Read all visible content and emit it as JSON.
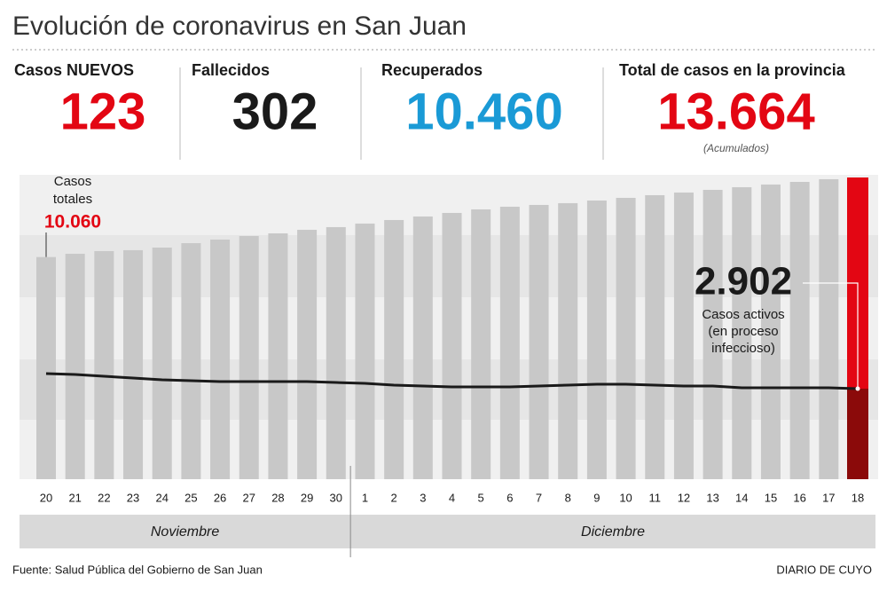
{
  "title": "Evolución de coronavirus en San Juan",
  "stats": [
    {
      "label": "Casos NUEVOS",
      "value": "123",
      "color": "#e30613"
    },
    {
      "label": "Fallecidos",
      "value": "302",
      "color": "#1a1a1a"
    },
    {
      "label": "Recuperados",
      "value": "10.460",
      "color": "#1a9ad6"
    },
    {
      "label": "Total de casos en la provincia",
      "value": "13.664",
      "color": "#e30613",
      "note": "(Acumulados)"
    }
  ],
  "chart_data": {
    "type": "bar",
    "categories": [
      "20",
      "21",
      "22",
      "23",
      "24",
      "25",
      "26",
      "27",
      "28",
      "29",
      "30",
      "1",
      "2",
      "3",
      "4",
      "5",
      "6",
      "7",
      "8",
      "9",
      "10",
      "11",
      "12",
      "13",
      "14",
      "15",
      "16",
      "17",
      "18"
    ],
    "series": [
      {
        "name": "Casos totales",
        "color": "#c8c8c8",
        "values": [
          10060,
          10209,
          10330,
          10370,
          10490,
          10691,
          10852,
          11013,
          11133,
          11294,
          11415,
          11576,
          11736,
          11897,
          12058,
          12219,
          12339,
          12420,
          12500,
          12621,
          12741,
          12862,
          12982,
          13103,
          13223,
          13344,
          13464,
          13585,
          13664
        ],
        "value_labels": [
          "10.060",
          null,
          null,
          null,
          null,
          null,
          null,
          null,
          null,
          null,
          null,
          null,
          null,
          null,
          null,
          null,
          null,
          null,
          null,
          null,
          null,
          null,
          null,
          null,
          null,
          null,
          null,
          null,
          null
        ]
      },
      {
        "name": "Casos activos (en proceso infeccioso)",
        "color": "#1a1a1a",
        "axis": "y2",
        "values": [
          3386,
          3357,
          3300,
          3243,
          3186,
          3158,
          3130,
          3130,
          3130,
          3130,
          3101,
          3073,
          3016,
          2987,
          2959,
          2959,
          2959,
          2987,
          3016,
          3044,
          3044,
          3016,
          2987,
          2987,
          2930,
          2930,
          2930,
          2930,
          2902
        ],
        "value_labels": [
          null,
          null,
          null,
          null,
          null,
          null,
          null,
          null,
          null,
          null,
          null,
          null,
          null,
          null,
          null,
          null,
          null,
          null,
          null,
          null,
          null,
          null,
          null,
          null,
          null,
          null,
          null,
          null,
          "2.902"
        ]
      }
    ],
    "highlight_color": "#e30613",
    "highlight_dark_color": "#8b0a0a",
    "months": [
      "Noviembre",
      "Diciembre"
    ]
  },
  "source": "Fuente: Salud Pública del Gobierno de San Juan",
  "brand": "DIARIO DE CUYO"
}
